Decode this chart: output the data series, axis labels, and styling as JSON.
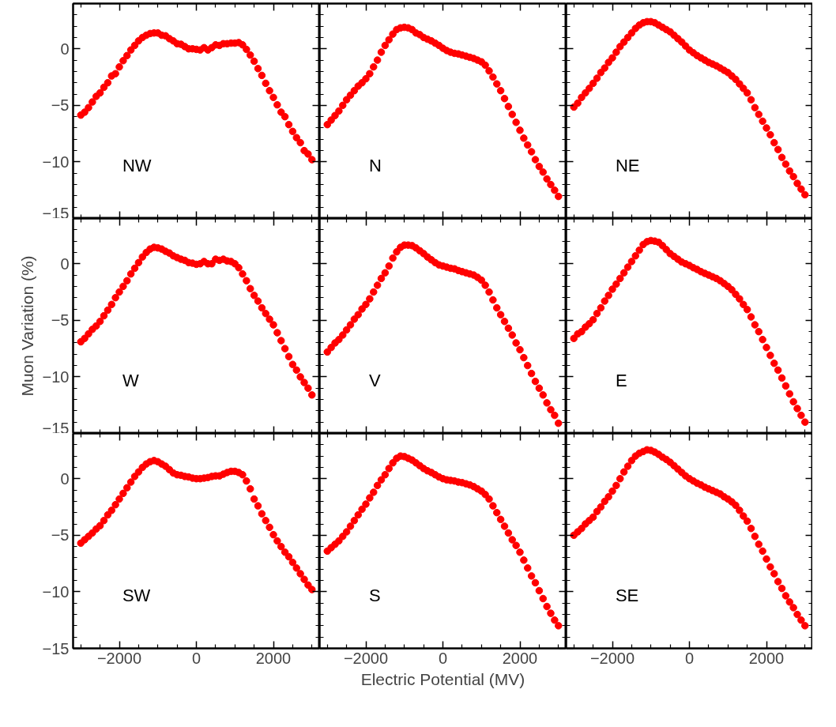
{
  "chart_data": [
    {
      "type": "scatter",
      "annotations": [
        "NW"
      ],
      "marker": "circle",
      "tick_labels": "y",
      "xlim": [
        -3200,
        3200
      ],
      "ylim": [
        -15,
        4
      ],
      "xticks": [
        -2000,
        0,
        2000,
        {
          "value": -3000,
          "label": null
        },
        {
          "value": -2500,
          "label": null
        },
        {
          "value": -1500,
          "label": null
        },
        {
          "value": -1000,
          "label": null
        },
        {
          "value": -500,
          "label": null
        },
        {
          "value": 500,
          "label": null
        },
        {
          "value": 1000,
          "label": null
        },
        {
          "value": 1500,
          "label": null
        },
        {
          "value": 2500,
          "label": null
        },
        {
          "value": 3000,
          "label": null
        }
      ],
      "yticks": [
        -15,
        -10,
        -5,
        0,
        {
          "value": -14,
          "label": null
        },
        {
          "value": -13,
          "label": null
        },
        {
          "value": -12,
          "label": null
        },
        {
          "value": -11,
          "label": null
        },
        {
          "value": -9,
          "label": null
        },
        {
          "value": -8,
          "label": null
        },
        {
          "value": -7,
          "label": null
        },
        {
          "value": -6,
          "label": null
        },
        {
          "value": -4,
          "label": null
        },
        {
          "value": -3,
          "label": null
        },
        {
          "value": -2,
          "label": null
        },
        {
          "value": -1,
          "label": null
        },
        {
          "value": 1,
          "label": null
        },
        {
          "value": 2,
          "label": null
        },
        {
          "value": 3,
          "label": null
        }
      ],
      "x": [
        -3000,
        -2900,
        -2800,
        -2700,
        -2600,
        -2500,
        -2400,
        -2300,
        -2200,
        -2100,
        -2000,
        -1900,
        -1800,
        -1700,
        -1600,
        -1500,
        -1400,
        -1300,
        -1200,
        -1100,
        -1000,
        -900,
        -800,
        -700,
        -600,
        -500,
        -400,
        -300,
        -200,
        -100,
        0,
        100,
        200,
        300,
        400,
        500,
        600,
        700,
        800,
        900,
        1000,
        1100,
        1200,
        1300,
        1400,
        1500,
        1600,
        1700,
        1800,
        1900,
        2000,
        2100,
        2200,
        2300,
        2400,
        2500,
        2600,
        2700,
        2800,
        2900,
        3000
      ],
      "series": [
        {
          "color": "#ff0000",
          "values": [
            -5.86,
            -5.6,
            -5.2,
            -4.7,
            -4.2,
            -3.9,
            -3.4,
            -3.0,
            -2.4,
            -2.2,
            -1.6,
            -1.05,
            -0.6,
            -0.1,
            0.3,
            0.7,
            1.0,
            1.2,
            1.35,
            1.4,
            1.4,
            1.2,
            1.15,
            0.9,
            0.7,
            0.45,
            0.4,
            0.2,
            0.0,
            0.0,
            -0.05,
            -0.1,
            0.1,
            -0.1,
            0.1,
            0.35,
            0.3,
            0.45,
            0.45,
            0.5,
            0.5,
            0.55,
            0.35,
            -0.05,
            -0.55,
            -1.1,
            -1.75,
            -2.35,
            -3.05,
            -3.7,
            -4.3,
            -4.95,
            -5.6,
            -6.0,
            -6.7,
            -7.3,
            -7.85,
            -8.3,
            -9.0,
            -9.3,
            -9.8
          ]
        }
      ]
    },
    {
      "type": "scatter",
      "annotations": [
        "N"
      ],
      "marker": "circle",
      "tick_labels": false,
      "xlim": [
        -3200,
        3200
      ],
      "ylim": [
        -15,
        4
      ],
      "xticks": [
        -2000,
        0,
        2000,
        {
          "value": -3000,
          "label": null
        },
        {
          "value": -2500,
          "label": null
        },
        {
          "value": -1500,
          "label": null
        },
        {
          "value": -1000,
          "label": null
        },
        {
          "value": -500,
          "label": null
        },
        {
          "value": 500,
          "label": null
        },
        {
          "value": 1000,
          "label": null
        },
        {
          "value": 1500,
          "label": null
        },
        {
          "value": 2500,
          "label": null
        },
        {
          "value": 3000,
          "label": null
        }
      ],
      "yticks": [
        -15,
        -10,
        -5,
        0,
        {
          "value": -14,
          "label": null
        },
        {
          "value": -13,
          "label": null
        },
        {
          "value": -12,
          "label": null
        },
        {
          "value": -11,
          "label": null
        },
        {
          "value": -9,
          "label": null
        },
        {
          "value": -8,
          "label": null
        },
        {
          "value": -7,
          "label": null
        },
        {
          "value": -6,
          "label": null
        },
        {
          "value": -4,
          "label": null
        },
        {
          "value": -3,
          "label": null
        },
        {
          "value": -2,
          "label": null
        },
        {
          "value": -1,
          "label": null
        },
        {
          "value": 1,
          "label": null
        },
        {
          "value": 2,
          "label": null
        },
        {
          "value": 3,
          "label": null
        }
      ],
      "x": [
        -3000,
        -2900,
        -2800,
        -2700,
        -2600,
        -2500,
        -2400,
        -2300,
        -2200,
        -2100,
        -2000,
        -1900,
        -1800,
        -1700,
        -1600,
        -1500,
        -1400,
        -1300,
        -1200,
        -1100,
        -1000,
        -900,
        -800,
        -700,
        -600,
        -500,
        -400,
        -300,
        -200,
        -100,
        0,
        100,
        200,
        300,
        400,
        500,
        600,
        700,
        800,
        900,
        1000,
        1100,
        1200,
        1300,
        1400,
        1500,
        1600,
        1700,
        1800,
        1900,
        2000,
        2100,
        2200,
        2300,
        2400,
        2500,
        2600,
        2700,
        2800,
        2900,
        3000
      ],
      "series": [
        {
          "color": "#ff0000",
          "values": [
            -6.7,
            -6.3,
            -5.9,
            -5.5,
            -5.0,
            -4.5,
            -4.1,
            -3.7,
            -3.3,
            -3.0,
            -2.65,
            -2.2,
            -1.6,
            -1.0,
            -0.3,
            0.3,
            0.8,
            1.3,
            1.7,
            1.85,
            1.9,
            1.85,
            1.7,
            1.4,
            1.25,
            1.0,
            0.85,
            0.7,
            0.5,
            0.3,
            0.05,
            -0.15,
            -0.3,
            -0.4,
            -0.45,
            -0.55,
            -0.65,
            -0.75,
            -0.85,
            -1.0,
            -1.15,
            -1.45,
            -1.95,
            -2.5,
            -3.1,
            -3.7,
            -4.4,
            -5.1,
            -5.8,
            -6.5,
            -7.2,
            -7.9,
            -8.5,
            -9.1,
            -9.8,
            -10.4,
            -10.9,
            -11.5,
            -12.0,
            -12.5,
            -13.05
          ]
        }
      ]
    },
    {
      "type": "scatter",
      "annotations": [
        "NE"
      ],
      "marker": "circle",
      "tick_labels": false,
      "xlim": [
        -3200,
        3200
      ],
      "ylim": [
        -15,
        4
      ],
      "xticks": [
        -2000,
        0,
        2000,
        {
          "value": -3000,
          "label": null
        },
        {
          "value": -2500,
          "label": null
        },
        {
          "value": -1500,
          "label": null
        },
        {
          "value": -1000,
          "label": null
        },
        {
          "value": -500,
          "label": null
        },
        {
          "value": 500,
          "label": null
        },
        {
          "value": 1000,
          "label": null
        },
        {
          "value": 1500,
          "label": null
        },
        {
          "value": 2500,
          "label": null
        },
        {
          "value": 3000,
          "label": null
        }
      ],
      "yticks": [
        -15,
        -10,
        -5,
        0,
        {
          "value": -14,
          "label": null
        },
        {
          "value": -13,
          "label": null
        },
        {
          "value": -12,
          "label": null
        },
        {
          "value": -11,
          "label": null
        },
        {
          "value": -9,
          "label": null
        },
        {
          "value": -8,
          "label": null
        },
        {
          "value": -7,
          "label": null
        },
        {
          "value": -6,
          "label": null
        },
        {
          "value": -4,
          "label": null
        },
        {
          "value": -3,
          "label": null
        },
        {
          "value": -2,
          "label": null
        },
        {
          "value": -1,
          "label": null
        },
        {
          "value": 1,
          "label": null
        },
        {
          "value": 2,
          "label": null
        },
        {
          "value": 3,
          "label": null
        }
      ],
      "x": [
        -3000,
        -2900,
        -2800,
        -2700,
        -2600,
        -2500,
        -2400,
        -2300,
        -2200,
        -2100,
        -2000,
        -1900,
        -1800,
        -1700,
        -1600,
        -1500,
        -1400,
        -1300,
        -1200,
        -1100,
        -1000,
        -900,
        -800,
        -700,
        -600,
        -500,
        -400,
        -300,
        -200,
        -100,
        0,
        100,
        200,
        300,
        400,
        500,
        600,
        700,
        800,
        900,
        1000,
        1100,
        1200,
        1300,
        1400,
        1500,
        1600,
        1700,
        1800,
        1900,
        2000,
        2100,
        2200,
        2300,
        2400,
        2500,
        2600,
        2700,
        2800,
        2900,
        3000
      ],
      "series": [
        {
          "color": "#ff0000",
          "values": [
            -5.15,
            -4.8,
            -4.3,
            -3.9,
            -3.5,
            -3.05,
            -2.6,
            -2.1,
            -1.7,
            -1.2,
            -0.8,
            -0.3,
            0.2,
            0.6,
            1.0,
            1.4,
            1.8,
            2.1,
            2.3,
            2.4,
            2.4,
            2.3,
            2.1,
            1.9,
            1.7,
            1.5,
            1.2,
            0.9,
            0.6,
            0.25,
            -0.1,
            -0.35,
            -0.6,
            -0.8,
            -1.0,
            -1.2,
            -1.35,
            -1.5,
            -1.7,
            -1.9,
            -2.1,
            -2.4,
            -2.7,
            -3.1,
            -3.5,
            -3.9,
            -4.5,
            -5.2,
            -5.8,
            -6.4,
            -7.0,
            -7.6,
            -8.3,
            -8.9,
            -9.6,
            -10.2,
            -10.8,
            -11.3,
            -11.9,
            -12.4,
            -12.9
          ]
        }
      ]
    },
    {
      "type": "scatter",
      "annotations": [
        "W"
      ],
      "ylabel": "Muon Variation (%)",
      "marker": "circle",
      "tick_labels": "y",
      "xlim": [
        -3200,
        3200
      ],
      "ylim": [
        -15,
        4
      ],
      "xticks": [
        -2000,
        0,
        2000,
        {
          "value": -3000,
          "label": null
        },
        {
          "value": -2500,
          "label": null
        },
        {
          "value": -1500,
          "label": null
        },
        {
          "value": -1000,
          "label": null
        },
        {
          "value": -500,
          "label": null
        },
        {
          "value": 500,
          "label": null
        },
        {
          "value": 1000,
          "label": null
        },
        {
          "value": 1500,
          "label": null
        },
        {
          "value": 2500,
          "label": null
        },
        {
          "value": 3000,
          "label": null
        }
      ],
      "yticks": [
        -15,
        -10,
        -5,
        0,
        {
          "value": -14,
          "label": null
        },
        {
          "value": -13,
          "label": null
        },
        {
          "value": -12,
          "label": null
        },
        {
          "value": -11,
          "label": null
        },
        {
          "value": -9,
          "label": null
        },
        {
          "value": -8,
          "label": null
        },
        {
          "value": -7,
          "label": null
        },
        {
          "value": -6,
          "label": null
        },
        {
          "value": -4,
          "label": null
        },
        {
          "value": -3,
          "label": null
        },
        {
          "value": -2,
          "label": null
        },
        {
          "value": -1,
          "label": null
        },
        {
          "value": 1,
          "label": null
        },
        {
          "value": 2,
          "label": null
        },
        {
          "value": 3,
          "label": null
        }
      ],
      "x": [
        -3000,
        -2900,
        -2800,
        -2700,
        -2600,
        -2500,
        -2400,
        -2300,
        -2200,
        -2100,
        -2000,
        -1900,
        -1800,
        -1700,
        -1600,
        -1500,
        -1400,
        -1300,
        -1200,
        -1100,
        -1000,
        -900,
        -800,
        -700,
        -600,
        -500,
        -400,
        -300,
        -200,
        -100,
        0,
        100,
        200,
        300,
        400,
        500,
        600,
        700,
        800,
        900,
        1000,
        1100,
        1200,
        1300,
        1400,
        1500,
        1600,
        1700,
        1800,
        1900,
        2000,
        2100,
        2200,
        2300,
        2400,
        2500,
        2600,
        2700,
        2800,
        2900,
        3000
      ],
      "series": [
        {
          "color": "#ff0000",
          "values": [
            -6.9,
            -6.6,
            -6.2,
            -5.8,
            -5.5,
            -5.1,
            -4.6,
            -4.1,
            -3.6,
            -3.0,
            -2.5,
            -2.0,
            -1.5,
            -0.9,
            -0.4,
            0.1,
            0.6,
            1.0,
            1.3,
            1.45,
            1.4,
            1.3,
            1.1,
            0.95,
            0.7,
            0.55,
            0.4,
            0.3,
            0.1,
            0.05,
            -0.05,
            0.0,
            0.2,
            0.0,
            0.0,
            0.4,
            0.3,
            0.4,
            0.25,
            0.2,
            0.0,
            -0.35,
            -0.9,
            -1.5,
            -2.2,
            -2.8,
            -3.3,
            -3.9,
            -4.4,
            -4.9,
            -5.4,
            -6.1,
            -6.8,
            -7.5,
            -8.2,
            -8.9,
            -9.4,
            -10.0,
            -10.5,
            -11.0,
            -11.6
          ]
        }
      ]
    },
    {
      "type": "scatter",
      "annotations": [
        "V"
      ],
      "marker": "circle",
      "tick_labels": false,
      "xlim": [
        -3200,
        3200
      ],
      "ylim": [
        -15,
        4
      ],
      "xticks": [
        -2000,
        0,
        2000,
        {
          "value": -3000,
          "label": null
        },
        {
          "value": -2500,
          "label": null
        },
        {
          "value": -1500,
          "label": null
        },
        {
          "value": -1000,
          "label": null
        },
        {
          "value": -500,
          "label": null
        },
        {
          "value": 500,
          "label": null
        },
        {
          "value": 1000,
          "label": null
        },
        {
          "value": 1500,
          "label": null
        },
        {
          "value": 2500,
          "label": null
        },
        {
          "value": 3000,
          "label": null
        }
      ],
      "yticks": [
        -15,
        -10,
        -5,
        0,
        {
          "value": -14,
          "label": null
        },
        {
          "value": -13,
          "label": null
        },
        {
          "value": -12,
          "label": null
        },
        {
          "value": -11,
          "label": null
        },
        {
          "value": -9,
          "label": null
        },
        {
          "value": -8,
          "label": null
        },
        {
          "value": -7,
          "label": null
        },
        {
          "value": -6,
          "label": null
        },
        {
          "value": -4,
          "label": null
        },
        {
          "value": -3,
          "label": null
        },
        {
          "value": -2,
          "label": null
        },
        {
          "value": -1,
          "label": null
        },
        {
          "value": 1,
          "label": null
        },
        {
          "value": 2,
          "label": null
        },
        {
          "value": 3,
          "label": null
        }
      ],
      "x": [
        -3000,
        -2900,
        -2800,
        -2700,
        -2600,
        -2500,
        -2400,
        -2300,
        -2200,
        -2100,
        -2000,
        -1900,
        -1800,
        -1700,
        -1600,
        -1500,
        -1400,
        -1300,
        -1200,
        -1100,
        -1000,
        -900,
        -800,
        -700,
        -600,
        -500,
        -400,
        -300,
        -200,
        -100,
        0,
        100,
        200,
        300,
        400,
        500,
        600,
        700,
        800,
        900,
        1000,
        1100,
        1200,
        1300,
        1400,
        1500,
        1600,
        1700,
        1800,
        1900,
        2000,
        2100,
        2200,
        2300,
        2400,
        2500,
        2600,
        2700,
        2800,
        2900,
        3000
      ],
      "series": [
        {
          "color": "#ff0000",
          "values": [
            -7.8,
            -7.4,
            -7.0,
            -6.7,
            -6.3,
            -5.85,
            -5.4,
            -4.9,
            -4.5,
            -4.0,
            -3.6,
            -3.1,
            -2.5,
            -1.9,
            -1.3,
            -0.8,
            -0.2,
            0.5,
            1.05,
            1.45,
            1.65,
            1.65,
            1.6,
            1.4,
            1.15,
            0.9,
            0.6,
            0.35,
            0.1,
            -0.1,
            -0.2,
            -0.3,
            -0.4,
            -0.45,
            -0.6,
            -0.7,
            -0.8,
            -0.9,
            -1.0,
            -1.2,
            -1.45,
            -1.9,
            -2.5,
            -3.2,
            -3.9,
            -4.5,
            -5.1,
            -5.7,
            -6.3,
            -7.0,
            -7.6,
            -8.3,
            -9.0,
            -9.7,
            -10.4,
            -11.0,
            -11.6,
            -12.3,
            -12.9,
            -13.4,
            -14.1
          ]
        }
      ]
    },
    {
      "type": "scatter",
      "annotations": [
        "E"
      ],
      "marker": "circle",
      "tick_labels": false,
      "xlim": [
        -3200,
        3200
      ],
      "ylim": [
        -15,
        4
      ],
      "xticks": [
        -2000,
        0,
        2000,
        {
          "value": -3000,
          "label": null
        },
        {
          "value": -2500,
          "label": null
        },
        {
          "value": -1500,
          "label": null
        },
        {
          "value": -1000,
          "label": null
        },
        {
          "value": -500,
          "label": null
        },
        {
          "value": 500,
          "label": null
        },
        {
          "value": 1000,
          "label": null
        },
        {
          "value": 1500,
          "label": null
        },
        {
          "value": 2500,
          "label": null
        },
        {
          "value": 3000,
          "label": null
        }
      ],
      "yticks": [
        -15,
        -10,
        -5,
        0,
        {
          "value": -14,
          "label": null
        },
        {
          "value": -13,
          "label": null
        },
        {
          "value": -12,
          "label": null
        },
        {
          "value": -11,
          "label": null
        },
        {
          "value": -9,
          "label": null
        },
        {
          "value": -8,
          "label": null
        },
        {
          "value": -7,
          "label": null
        },
        {
          "value": -6,
          "label": null
        },
        {
          "value": -4,
          "label": null
        },
        {
          "value": -3,
          "label": null
        },
        {
          "value": -2,
          "label": null
        },
        {
          "value": -1,
          "label": null
        },
        {
          "value": 1,
          "label": null
        },
        {
          "value": 2,
          "label": null
        },
        {
          "value": 3,
          "label": null
        }
      ],
      "x": [
        -3000,
        -2900,
        -2800,
        -2700,
        -2600,
        -2500,
        -2400,
        -2300,
        -2200,
        -2100,
        -2000,
        -1900,
        -1800,
        -1700,
        -1600,
        -1500,
        -1400,
        -1300,
        -1200,
        -1100,
        -1000,
        -900,
        -800,
        -700,
        -600,
        -500,
        -400,
        -300,
        -200,
        -100,
        0,
        100,
        200,
        300,
        400,
        500,
        600,
        700,
        800,
        900,
        1000,
        1100,
        1200,
        1300,
        1400,
        1500,
        1600,
        1700,
        1800,
        1900,
        2000,
        2100,
        2200,
        2300,
        2400,
        2500,
        2600,
        2700,
        2800,
        2900,
        3000
      ],
      "series": [
        {
          "color": "#ff0000",
          "values": [
            -6.6,
            -6.2,
            -6.0,
            -5.6,
            -5.3,
            -4.95,
            -4.4,
            -3.9,
            -3.3,
            -2.8,
            -2.25,
            -1.8,
            -1.3,
            -0.8,
            -0.3,
            0.2,
            0.7,
            1.2,
            1.7,
            1.95,
            2.05,
            2.0,
            1.9,
            1.6,
            1.25,
            0.9,
            0.65,
            0.4,
            0.15,
            0.0,
            -0.15,
            -0.35,
            -0.5,
            -0.7,
            -0.85,
            -1.0,
            -1.15,
            -1.3,
            -1.5,
            -1.75,
            -2.0,
            -2.3,
            -2.7,
            -3.1,
            -3.6,
            -4.05,
            -4.7,
            -5.4,
            -6.0,
            -6.7,
            -7.4,
            -8.1,
            -8.8,
            -9.4,
            -10.1,
            -10.8,
            -11.5,
            -12.2,
            -12.8,
            -13.4,
            -14.0
          ]
        }
      ]
    },
    {
      "type": "scatter",
      "annotations": [
        "SW"
      ],
      "marker": "circle",
      "xlim": [
        -3200,
        3200
      ],
      "ylim": [
        -15,
        4
      ],
      "xticks": [
        -2000,
        0,
        2000,
        {
          "value": -3000,
          "label": null
        },
        {
          "value": -2500,
          "label": null
        },
        {
          "value": -1500,
          "label": null
        },
        {
          "value": -1000,
          "label": null
        },
        {
          "value": -500,
          "label": null
        },
        {
          "value": 500,
          "label": null
        },
        {
          "value": 1000,
          "label": null
        },
        {
          "value": 1500,
          "label": null
        },
        {
          "value": 2500,
          "label": null
        },
        {
          "value": 3000,
          "label": null
        }
      ],
      "yticks": [
        -15,
        -10,
        -5,
        0,
        {
          "value": -14,
          "label": null
        },
        {
          "value": -13,
          "label": null
        },
        {
          "value": -12,
          "label": null
        },
        {
          "value": -11,
          "label": null
        },
        {
          "value": -9,
          "label": null
        },
        {
          "value": -8,
          "label": null
        },
        {
          "value": -7,
          "label": null
        },
        {
          "value": -6,
          "label": null
        },
        {
          "value": -4,
          "label": null
        },
        {
          "value": -3,
          "label": null
        },
        {
          "value": -2,
          "label": null
        },
        {
          "value": -1,
          "label": null
        },
        {
          "value": 1,
          "label": null
        },
        {
          "value": 2,
          "label": null
        },
        {
          "value": 3,
          "label": null
        }
      ],
      "x": [
        -3000,
        -2900,
        -2800,
        -2700,
        -2600,
        -2500,
        -2400,
        -2300,
        -2200,
        -2100,
        -2000,
        -1900,
        -1800,
        -1700,
        -1600,
        -1500,
        -1400,
        -1300,
        -1200,
        -1100,
        -1000,
        -900,
        -800,
        -700,
        -600,
        -500,
        -400,
        -300,
        -200,
        -100,
        0,
        100,
        200,
        300,
        400,
        500,
        600,
        700,
        800,
        900,
        1000,
        1100,
        1200,
        1300,
        1400,
        1500,
        1600,
        1700,
        1800,
        1900,
        2000,
        2100,
        2200,
        2300,
        2400,
        2500,
        2600,
        2700,
        2800,
        2900,
        3000
      ],
      "series": [
        {
          "color": "#ff0000",
          "values": [
            -5.7,
            -5.4,
            -5.1,
            -4.8,
            -4.45,
            -4.15,
            -3.7,
            -3.2,
            -2.8,
            -2.3,
            -1.8,
            -1.3,
            -0.8,
            -0.3,
            0.2,
            0.6,
            1.0,
            1.3,
            1.5,
            1.6,
            1.5,
            1.3,
            1.1,
            0.8,
            0.5,
            0.35,
            0.3,
            0.2,
            0.15,
            0.05,
            0.0,
            0.0,
            0.05,
            0.1,
            0.2,
            0.25,
            0.25,
            0.4,
            0.55,
            0.65,
            0.65,
            0.55,
            0.35,
            -0.2,
            -0.9,
            -1.8,
            -2.4,
            -3.1,
            -3.7,
            -4.3,
            -4.95,
            -5.5,
            -6.0,
            -6.5,
            -6.9,
            -7.4,
            -7.9,
            -8.4,
            -8.9,
            -9.4,
            -9.8
          ]
        }
      ]
    },
    {
      "type": "scatter",
      "annotations": [
        "S"
      ],
      "xlabel": "Electric Potential (MV)",
      "marker": "circle",
      "tick_labels": "x",
      "xlim": [
        -3200,
        3200
      ],
      "ylim": [
        -15,
        4
      ],
      "xticks": [
        -2000,
        0,
        2000,
        {
          "value": -3000,
          "label": null
        },
        {
          "value": -2500,
          "label": null
        },
        {
          "value": -1500,
          "label": null
        },
        {
          "value": -1000,
          "label": null
        },
        {
          "value": -500,
          "label": null
        },
        {
          "value": 500,
          "label": null
        },
        {
          "value": 1000,
          "label": null
        },
        {
          "value": 1500,
          "label": null
        },
        {
          "value": 2500,
          "label": null
        },
        {
          "value": 3000,
          "label": null
        }
      ],
      "yticks": [
        -15,
        -10,
        -5,
        0,
        {
          "value": -14,
          "label": null
        },
        {
          "value": -13,
          "label": null
        },
        {
          "value": -12,
          "label": null
        },
        {
          "value": -11,
          "label": null
        },
        {
          "value": -9,
          "label": null
        },
        {
          "value": -8,
          "label": null
        },
        {
          "value": -7,
          "label": null
        },
        {
          "value": -6,
          "label": null
        },
        {
          "value": -4,
          "label": null
        },
        {
          "value": -3,
          "label": null
        },
        {
          "value": -2,
          "label": null
        },
        {
          "value": -1,
          "label": null
        },
        {
          "value": 1,
          "label": null
        },
        {
          "value": 2,
          "label": null
        },
        {
          "value": 3,
          "label": null
        }
      ],
      "x": [
        -3000,
        -2900,
        -2800,
        -2700,
        -2600,
        -2500,
        -2400,
        -2300,
        -2200,
        -2100,
        -2000,
        -1900,
        -1800,
        -1700,
        -1600,
        -1500,
        -1400,
        -1300,
        -1200,
        -1100,
        -1000,
        -900,
        -800,
        -700,
        -600,
        -500,
        -400,
        -300,
        -200,
        -100,
        0,
        100,
        200,
        300,
        400,
        500,
        600,
        700,
        800,
        900,
        1000,
        1100,
        1200,
        1300,
        1400,
        1500,
        1600,
        1700,
        1800,
        1900,
        2000,
        2100,
        2200,
        2300,
        2400,
        2500,
        2600,
        2700,
        2800,
        2900,
        3000
      ],
      "series": [
        {
          "color": "#ff0000",
          "values": [
            -6.4,
            -6.1,
            -5.8,
            -5.5,
            -5.1,
            -4.7,
            -4.2,
            -3.7,
            -3.2,
            -2.7,
            -2.25,
            -1.7,
            -1.2,
            -0.6,
            -0.1,
            0.35,
            0.9,
            1.4,
            1.8,
            2.0,
            1.95,
            1.8,
            1.65,
            1.4,
            1.15,
            0.9,
            0.7,
            0.55,
            0.35,
            0.15,
            0.0,
            -0.1,
            -0.15,
            -0.2,
            -0.3,
            -0.35,
            -0.45,
            -0.55,
            -0.7,
            -0.9,
            -1.1,
            -1.4,
            -1.8,
            -2.4,
            -3.0,
            -3.6,
            -4.2,
            -4.8,
            -5.4,
            -5.9,
            -6.5,
            -7.2,
            -7.9,
            -8.6,
            -9.2,
            -9.9,
            -10.6,
            -11.3,
            -11.9,
            -12.5,
            -13.0
          ]
        }
      ]
    },
    {
      "type": "scatter",
      "annotations": [
        "SE"
      ],
      "marker": "circle",
      "tick_labels": "x",
      "xlim": [
        -3200,
        3200
      ],
      "ylim": [
        -15,
        4
      ],
      "xticks": [
        -2000,
        0,
        2000,
        {
          "value": -3000,
          "label": null
        },
        {
          "value": -2500,
          "label": null
        },
        {
          "value": -1500,
          "label": null
        },
        {
          "value": -1000,
          "label": null
        },
        {
          "value": -500,
          "label": null
        },
        {
          "value": 500,
          "label": null
        },
        {
          "value": 1000,
          "label": null
        },
        {
          "value": 1500,
          "label": null
        },
        {
          "value": 2500,
          "label": null
        },
        {
          "value": 3000,
          "label": null
        }
      ],
      "yticks": [
        -15,
        -10,
        -5,
        0,
        {
          "value": -14,
          "label": null
        },
        {
          "value": -13,
          "label": null
        },
        {
          "value": -12,
          "label": null
        },
        {
          "value": -11,
          "label": null
        },
        {
          "value": -9,
          "label": null
        },
        {
          "value": -8,
          "label": null
        },
        {
          "value": -7,
          "label": null
        },
        {
          "value": -6,
          "label": null
        },
        {
          "value": -4,
          "label": null
        },
        {
          "value": -3,
          "label": null
        },
        {
          "value": -2,
          "label": null
        },
        {
          "value": -1,
          "label": null
        },
        {
          "value": 1,
          "label": null
        },
        {
          "value": 2,
          "label": null
        },
        {
          "value": 3,
          "label": null
        }
      ],
      "x": [
        -3000,
        -2900,
        -2800,
        -2700,
        -2600,
        -2500,
        -2400,
        -2300,
        -2200,
        -2100,
        -2000,
        -1900,
        -1800,
        -1700,
        -1600,
        -1500,
        -1400,
        -1300,
        -1200,
        -1100,
        -1000,
        -900,
        -800,
        -700,
        -600,
        -500,
        -400,
        -300,
        -200,
        -100,
        0,
        100,
        200,
        300,
        400,
        500,
        600,
        700,
        800,
        900,
        1000,
        1100,
        1200,
        1300,
        1400,
        1500,
        1600,
        1700,
        1800,
        1900,
        2000,
        2100,
        2200,
        2300,
        2400,
        2500,
        2600,
        2700,
        2800,
        2900,
        3000
      ],
      "series": [
        {
          "color": "#ff0000",
          "values": [
            -5.0,
            -4.7,
            -4.4,
            -4.0,
            -3.7,
            -3.4,
            -2.9,
            -2.5,
            -2.0,
            -1.6,
            -1.1,
            -0.6,
            0.0,
            0.6,
            1.1,
            1.6,
            2.0,
            2.25,
            2.4,
            2.55,
            2.5,
            2.35,
            2.15,
            1.9,
            1.7,
            1.45,
            1.15,
            0.85,
            0.55,
            0.25,
            0.0,
            -0.2,
            -0.4,
            -0.55,
            -0.75,
            -0.9,
            -1.05,
            -1.2,
            -1.35,
            -1.6,
            -1.8,
            -2.05,
            -2.35,
            -2.8,
            -3.3,
            -3.75,
            -4.4,
            -5.1,
            -5.8,
            -6.4,
            -7.1,
            -7.8,
            -8.4,
            -9.1,
            -9.7,
            -10.35,
            -10.9,
            -11.4,
            -12.0,
            -12.5,
            -13.0
          ]
        }
      ]
    }
  ]
}
